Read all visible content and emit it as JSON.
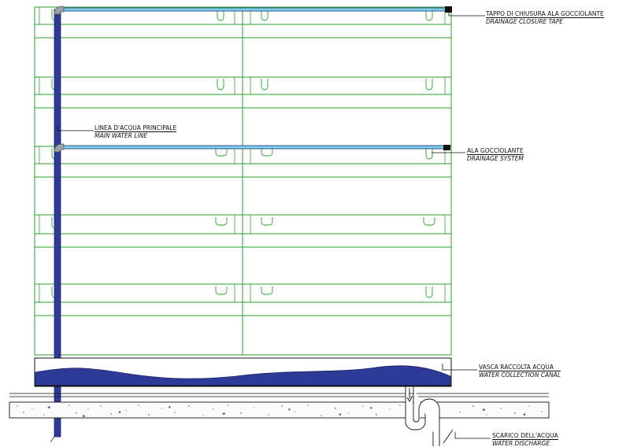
{
  "labels": {
    "closure_tape": {
      "it": "TAPPO DI CHIUSURA ALA GOCCIOLANTE",
      "en": "DRAINAGE CLOSURE TAPE"
    },
    "main_line": {
      "it": "LINEA D'ACQUA PRINCIPALE",
      "en": "MAIN WATER LINE"
    },
    "drainage": {
      "it": "ALA GOCCIOLANTE",
      "en": "DRAINAGE SYSTEM"
    },
    "collection": {
      "it": "VASCA RACCOLTA ACQUA",
      "en": "WATER COLLECTION CANAL"
    },
    "discharge": {
      "it": "SCARICO DELL'ACQUA",
      "en": "WATER DISCHARGE"
    }
  },
  "colors": {
    "module_line": "#2aa02a",
    "water_blue": "#2e3a98",
    "drip_cyan": "#7fd3e8",
    "canal_fill": "#2e3a98",
    "ink": "#111111"
  }
}
